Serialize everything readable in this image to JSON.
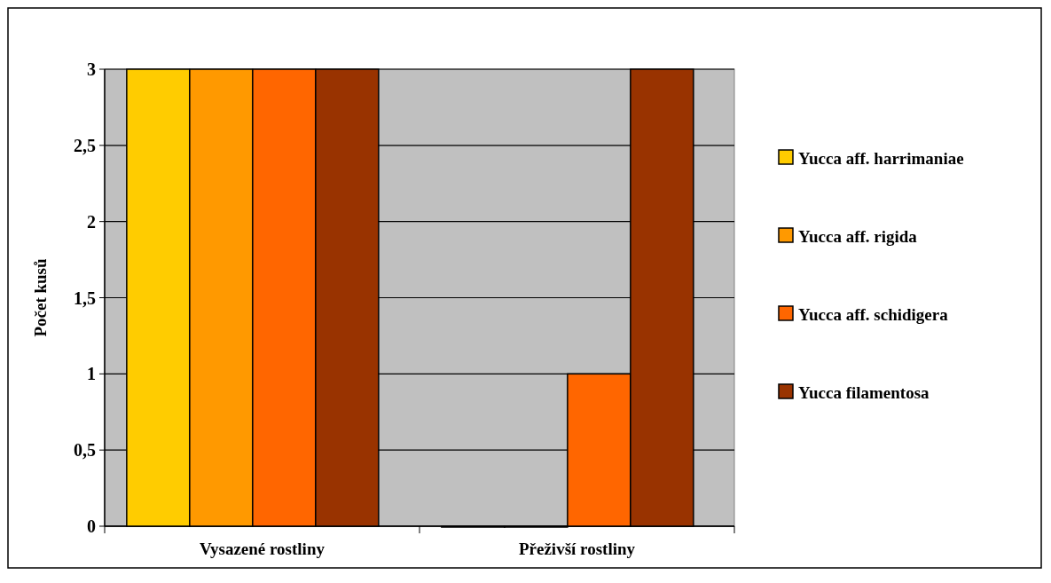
{
  "chart_data": {
    "type": "bar",
    "ylabel": "Počet kusů",
    "categories": [
      "Vysazené rostliny",
      "Přeživší rostliny"
    ],
    "series": [
      {
        "name": "Yucca aff. harrimaniae",
        "color": "#ffcc00",
        "values": [
          3,
          0
        ]
      },
      {
        "name": "Yucca aff. rigida",
        "color": "#ff9900",
        "values": [
          3,
          0
        ]
      },
      {
        "name": "Yucca aff. schidigera",
        "color": "#ff6600",
        "values": [
          3,
          1
        ]
      },
      {
        "name": "Yucca filamentosa",
        "color": "#993300",
        "values": [
          3,
          3
        ]
      }
    ],
    "ylim": [
      0,
      3
    ],
    "yticks": [
      0,
      {
        "value": 0.5,
        "label": "0,5"
      },
      1,
      {
        "value": 1.5,
        "label": "1,5"
      },
      2,
      {
        "value": 2.5,
        "label": "2,5"
      },
      3
    ],
    "grid": "y",
    "legend": "right"
  }
}
